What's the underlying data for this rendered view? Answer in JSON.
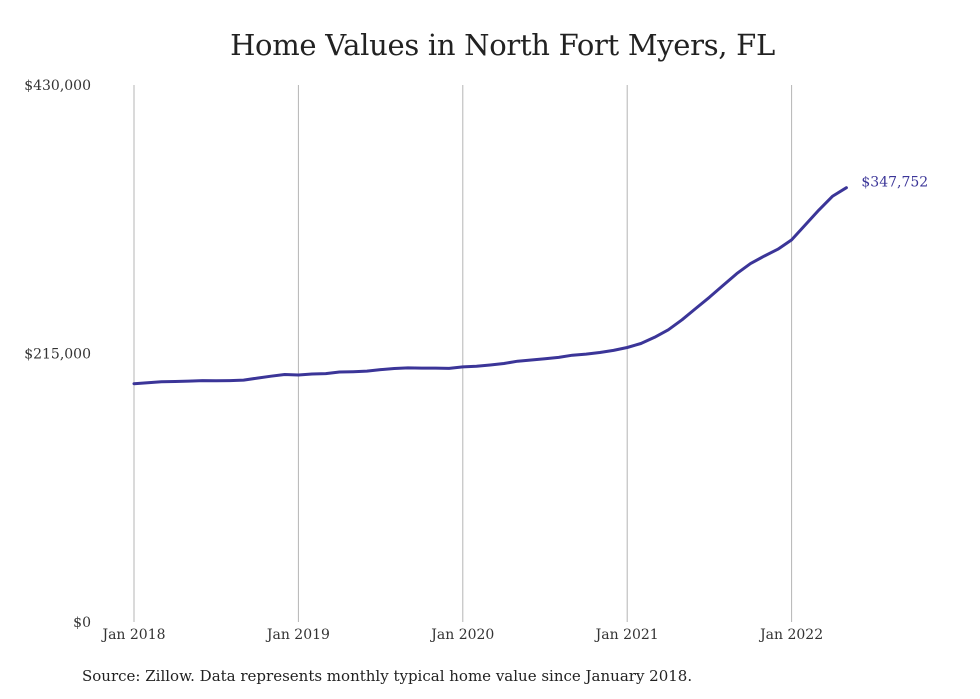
{
  "chart_data": {
    "type": "line",
    "title": "Home Values in North Fort Myers, FL",
    "xlabel": "",
    "ylabel": "",
    "ylim": [
      0,
      430000
    ],
    "y_ticks": [
      {
        "value": 0,
        "label": "$0"
      },
      {
        "value": 215000,
        "label": "$215,000"
      },
      {
        "value": 430000,
        "label": "$430,000"
      }
    ],
    "x_ticks": [
      {
        "value": 0,
        "label": "Jan 2018"
      },
      {
        "value": 12,
        "label": "Jan 2019"
      },
      {
        "value": 24,
        "label": "Jan 2020"
      },
      {
        "value": 36,
        "label": "Jan 2021"
      },
      {
        "value": 48,
        "label": "Jan 2022"
      }
    ],
    "grid": "vertical",
    "series": [
      {
        "color": "#3b3598",
        "end_label": "$347,752",
        "values": [
          190800,
          191600,
          192300,
          192600,
          192900,
          193300,
          193100,
          193300,
          193700,
          195300,
          196800,
          198200,
          197800,
          198600,
          198900,
          200200,
          200400,
          200900,
          202100,
          203000,
          203500,
          203300,
          203300,
          203100,
          204300,
          204800,
          205800,
          207000,
          208800,
          209800,
          210800,
          211900,
          213600,
          214500,
          215800,
          217500,
          219800,
          223000,
          228000,
          234000,
          242000,
          251000,
          260000,
          269500,
          279000,
          287000,
          293000,
          298500,
          306000,
          318000,
          330000,
          341000,
          347752
        ]
      }
    ]
  },
  "footer": {
    "source": "Source: Zillow. Data represents monthly typical home value since January 2018."
  }
}
